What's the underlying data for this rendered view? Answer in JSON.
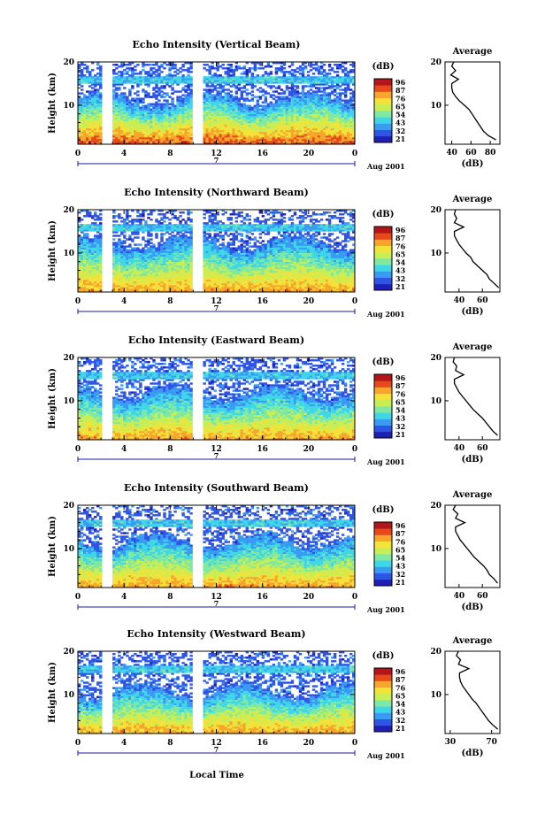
{
  "figure": {
    "xlabel": "Local Time",
    "colorbar_unit": "(dB)",
    "colorbar_ticks": [
      "96",
      "87",
      "76",
      "65",
      "54",
      "43",
      "32",
      "21"
    ],
    "avg_title": "Average",
    "avg_xlabel": "(dB)",
    "time_axis_label": "Aug 2001",
    "date_marker": "7",
    "ylabel": "Height (km)",
    "colormap": [
      "#1f1fb4",
      "#2f55e6",
      "#3a9bf2",
      "#3fd6e8",
      "#7fe8a3",
      "#c7ee55",
      "#f3e23a",
      "#f7a52c",
      "#e64a1b",
      "#b2161a"
    ]
  },
  "chart_data": [
    {
      "type": "heatmap",
      "title": "Echo Intensity (Vertical Beam)",
      "xlabel": "",
      "ylabel": "Height (km)",
      "x_ticks": [
        "0",
        "4",
        "8",
        "12",
        "16",
        "20",
        "0"
      ],
      "y_ticks": [
        "20",
        "10"
      ],
      "xlim": [
        0,
        24
      ],
      "ylim": [
        1,
        20
      ],
      "gaps_hours": [
        [
          2.0,
          2.9
        ],
        [
          10.0,
          10.8
        ]
      ],
      "tropopause_km": 16.0,
      "cloud_top_km": 11.5,
      "noise_floor_db": 28,
      "surface_db": 88,
      "colorbar_ticks": [
        "96",
        "87",
        "76",
        "65",
        "54",
        "43",
        "32",
        "21"
      ],
      "average_profile": {
        "title": "Average",
        "xlabel": "(dB)",
        "x_ticks": [
          "40",
          "60",
          "80"
        ],
        "y_ticks": [
          "20",
          "10"
        ],
        "xlim": [
          33,
          90
        ],
        "height_km": [
          2,
          3,
          4,
          5,
          6,
          7,
          8,
          9,
          10,
          11,
          12,
          13,
          14,
          15,
          16,
          17,
          18,
          19,
          20
        ],
        "db": [
          86,
          78,
          73,
          70,
          67,
          64,
          61,
          58,
          53,
          48,
          44,
          41,
          40,
          40,
          47,
          39,
          44,
          40,
          42
        ]
      }
    },
    {
      "type": "heatmap",
      "title": "Echo Intensity (Northward Beam)",
      "xlabel": "",
      "ylabel": "Height (km)",
      "x_ticks": [
        "0",
        "4",
        "8",
        "12",
        "16",
        "20",
        "0"
      ],
      "y_ticks": [
        "20",
        "10"
      ],
      "xlim": [
        0,
        24
      ],
      "ylim": [
        1,
        20
      ],
      "gaps_hours": [
        [
          2.0,
          2.9
        ],
        [
          10.0,
          10.8
        ]
      ],
      "tropopause_km": 16.0,
      "cloud_top_km": 12.5,
      "noise_floor_db": 28,
      "surface_db": 80,
      "colorbar_ticks": [
        "96",
        "87",
        "76",
        "65",
        "54",
        "43",
        "32",
        "21"
      ],
      "average_profile": {
        "title": "Average",
        "xlabel": "(dB)",
        "x_ticks": [
          "40",
          "60"
        ],
        "y_ticks": [
          "20",
          "10"
        ],
        "xlim": [
          28,
          75
        ],
        "height_km": [
          2,
          3,
          4,
          5,
          6,
          7,
          8,
          9,
          10,
          11,
          12,
          13,
          14,
          15,
          16,
          17,
          18,
          19,
          20
        ],
        "db": [
          74,
          70,
          66,
          64,
          60,
          56,
          52,
          50,
          46,
          43,
          40,
          38,
          36,
          36,
          44,
          36,
          38,
          36,
          37
        ]
      }
    },
    {
      "type": "heatmap",
      "title": "Echo Intensity (Eastward Beam)",
      "xlabel": "",
      "ylabel": "Height (km)",
      "x_ticks": [
        "0",
        "4",
        "8",
        "12",
        "16",
        "20",
        "0"
      ],
      "y_ticks": [
        "20",
        "10"
      ],
      "xlim": [
        0,
        24
      ],
      "ylim": [
        1,
        20
      ],
      "gaps_hours": [
        [
          2.0,
          2.9
        ],
        [
          10.0,
          10.8
        ]
      ],
      "tropopause_km": 16.0,
      "cloud_top_km": 12.0,
      "noise_floor_db": 28,
      "surface_db": 80,
      "colorbar_ticks": [
        "96",
        "87",
        "76",
        "65",
        "54",
        "43",
        "32",
        "21"
      ],
      "average_profile": {
        "title": "Average",
        "xlabel": "(dB)",
        "x_ticks": [
          "40",
          "60"
        ],
        "y_ticks": [
          "20",
          "10"
        ],
        "xlim": [
          28,
          75
        ],
        "height_km": [
          2,
          3,
          4,
          5,
          6,
          7,
          8,
          9,
          10,
          11,
          12,
          13,
          14,
          15,
          16,
          17,
          18,
          19,
          20
        ],
        "db": [
          73,
          69,
          66,
          63,
          60,
          56,
          52,
          49,
          46,
          43,
          40,
          38,
          36,
          36,
          44,
          37,
          38,
          35,
          36
        ]
      }
    },
    {
      "type": "heatmap",
      "title": "Echo Intensity (Southward Beam)",
      "xlabel": "",
      "ylabel": "Height (km)",
      "x_ticks": [
        "0",
        "4",
        "8",
        "12",
        "16",
        "20",
        "0"
      ],
      "y_ticks": [
        "20",
        "10"
      ],
      "xlim": [
        0,
        24
      ],
      "ylim": [
        1,
        20
      ],
      "gaps_hours": [
        [
          2.0,
          2.9
        ],
        [
          10.0,
          10.8
        ]
      ],
      "tropopause_km": 16.0,
      "cloud_top_km": 12.0,
      "noise_floor_db": 28,
      "surface_db": 80,
      "colorbar_ticks": [
        "96",
        "87",
        "76",
        "65",
        "54",
        "43",
        "32",
        "21"
      ],
      "average_profile": {
        "title": "Average",
        "xlabel": "(dB)",
        "x_ticks": [
          "40",
          "60"
        ],
        "y_ticks": [
          "20",
          "10"
        ],
        "xlim": [
          28,
          75
        ],
        "height_km": [
          2,
          3,
          4,
          5,
          6,
          7,
          8,
          9,
          10,
          11,
          12,
          13,
          14,
          15,
          16,
          17,
          18,
          19,
          20
        ],
        "db": [
          73,
          70,
          66,
          64,
          61,
          57,
          53,
          50,
          47,
          44,
          41,
          39,
          37,
          37,
          45,
          37,
          39,
          35,
          37
        ]
      }
    },
    {
      "type": "heatmap",
      "title": "Echo Intensity (Westward Beam)",
      "xlabel": "Local Time",
      "ylabel": "Height (km)",
      "x_ticks": [
        "0",
        "4",
        "8",
        "12",
        "16",
        "20",
        "0"
      ],
      "y_ticks": [
        "20",
        "10"
      ],
      "xlim": [
        0,
        24
      ],
      "ylim": [
        1,
        20
      ],
      "gaps_hours": [
        [
          2.0,
          2.9
        ],
        [
          10.0,
          10.8
        ]
      ],
      "tropopause_km": 16.0,
      "cloud_top_km": 11.0,
      "noise_floor_db": 28,
      "surface_db": 80,
      "colorbar_ticks": [
        "96",
        "87",
        "76",
        "65",
        "54",
        "43",
        "32",
        "21"
      ],
      "average_profile": {
        "title": "Average",
        "xlabel": "(dB)",
        "x_ticks": [
          "30",
          "70"
        ],
        "y_ticks": [
          "20",
          "10"
        ],
        "xlim": [
          25,
          78
        ],
        "height_km": [
          2,
          3,
          4,
          5,
          6,
          7,
          8,
          9,
          10,
          11,
          12,
          13,
          14,
          15,
          16,
          17,
          18,
          19,
          20
        ],
        "db": [
          76,
          71,
          67,
          64,
          61,
          58,
          55,
          51,
          48,
          45,
          42,
          40,
          39,
          39,
          48,
          38,
          40,
          36,
          38
        ]
      }
    }
  ]
}
